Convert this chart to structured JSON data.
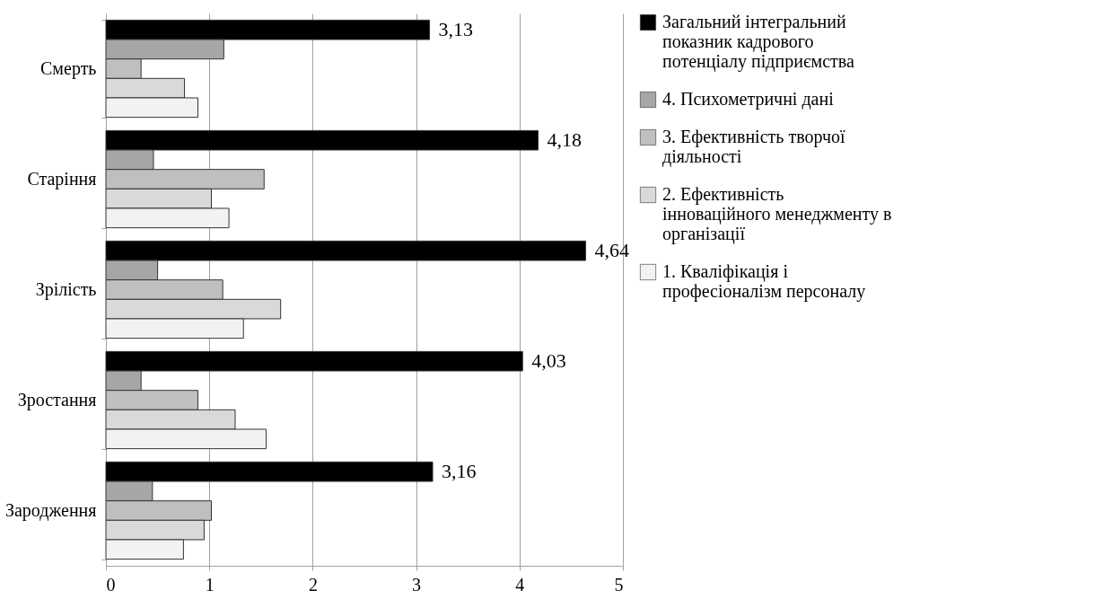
{
  "chart_data": {
    "type": "bar",
    "orientation": "horizontal",
    "categories": [
      "Смерть",
      "Старіння",
      "Зрілість",
      "Зростання",
      "Зародження"
    ],
    "series": [
      {
        "name": "Загальний інтегральний показник кадрового потенціалу підприємства",
        "color": "#000000",
        "values": [
          3.13,
          4.18,
          4.64,
          4.03,
          3.16
        ],
        "value_labels": [
          "3,13",
          "4,18",
          "4,64",
          "4,03",
          "3,16"
        ]
      },
      {
        "name": "4. Психометричні дані",
        "color": "#a6a6a6",
        "values": [
          1.14,
          0.46,
          0.5,
          0.34,
          0.45
        ]
      },
      {
        "name": "3. Ефективність творчої діяльності",
        "color": "#bfbfbf",
        "values": [
          0.34,
          1.53,
          1.13,
          0.89,
          1.02
        ]
      },
      {
        "name": "2. Ефективність інноваційного менеджменту в організації",
        "color": "#d9d9d9",
        "values": [
          0.76,
          1.02,
          1.69,
          1.25,
          0.95
        ]
      },
      {
        "name": "1. Кваліфікація і професіоналізм персоналу",
        "color": "#f2f2f2",
        "values": [
          0.89,
          1.19,
          1.33,
          1.55,
          0.75
        ]
      }
    ],
    "xlim": [
      0,
      5
    ],
    "xticks": [
      0,
      1,
      2,
      3,
      4,
      5
    ],
    "grid": "x",
    "legend": "right"
  }
}
